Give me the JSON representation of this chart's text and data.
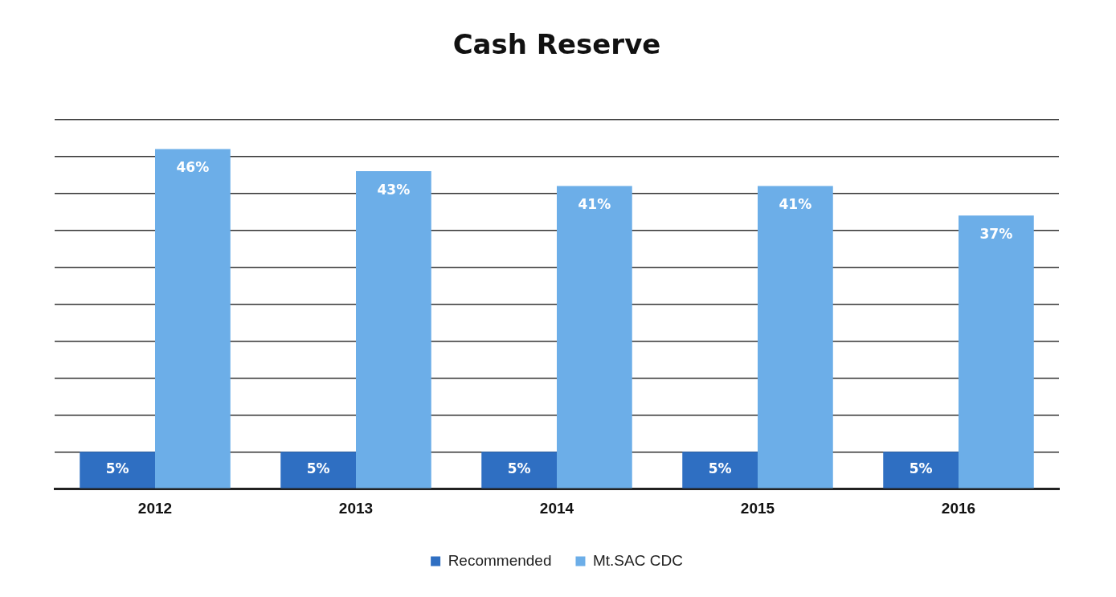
{
  "chart_data": {
    "type": "bar",
    "title": "Cash Reserve",
    "categories": [
      "2012",
      "2013",
      "2014",
      "2015",
      "2016"
    ],
    "series": [
      {
        "name": "Recommended",
        "color": "#2f6fc2",
        "values": [
          5,
          5,
          5,
          5,
          5
        ],
        "value_labels": [
          "5%",
          "5%",
          "5%",
          "5%",
          "5%"
        ]
      },
      {
        "name": "Mt.SAC CDC",
        "color": "#6caee8",
        "values": [
          46,
          43,
          41,
          41,
          37
        ],
        "value_labels": [
          "46%",
          "43%",
          "41%",
          "41%",
          "37%"
        ]
      }
    ],
    "tick_labels": "x",
    "grid": "y",
    "legend": "bottom"
  }
}
